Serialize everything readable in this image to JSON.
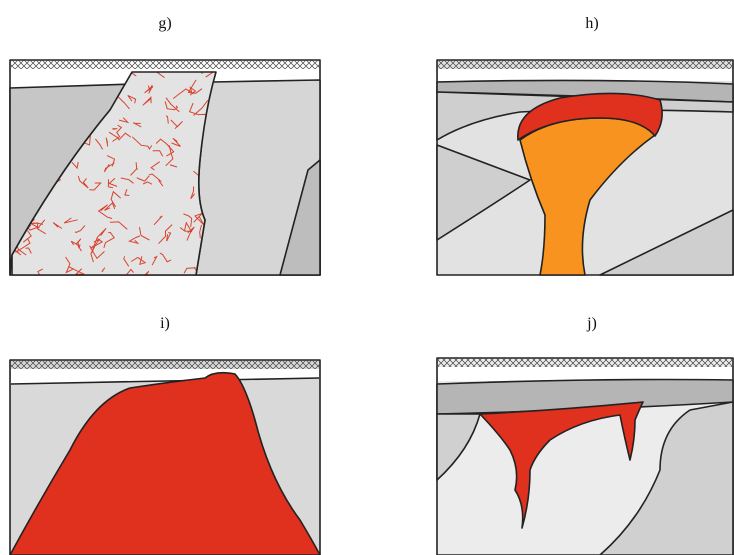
{
  "panels": [
    {
      "label": "g)"
    },
    {
      "label": "h)"
    },
    {
      "label": "i)"
    },
    {
      "label": "j)"
    }
  ]
}
